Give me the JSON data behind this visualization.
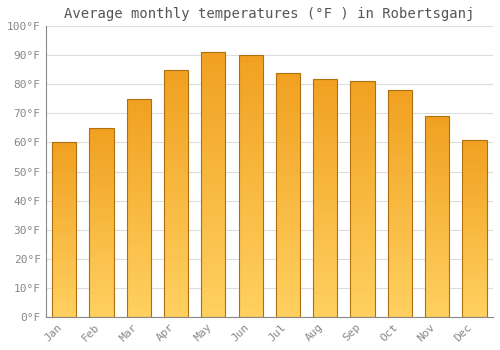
{
  "title": "Average monthly temperatures (°F ) in Robertsganj",
  "months": [
    "Jan",
    "Feb",
    "Mar",
    "Apr",
    "May",
    "Jun",
    "Jul",
    "Aug",
    "Sep",
    "Oct",
    "Nov",
    "Dec"
  ],
  "values": [
    60,
    65,
    75,
    85,
    91,
    90,
    84,
    82,
    81,
    78,
    69,
    61
  ],
  "bar_color_bottom": "#FFD060",
  "bar_color_top": "#F0A020",
  "bar_edge_color": "#B07010",
  "ylim": [
    0,
    100
  ],
  "yticks": [
    0,
    10,
    20,
    30,
    40,
    50,
    60,
    70,
    80,
    90,
    100
  ],
  "ytick_labels": [
    "0°F",
    "10°F",
    "20°F",
    "30°F",
    "40°F",
    "50°F",
    "60°F",
    "70°F",
    "80°F",
    "90°F",
    "100°F"
  ],
  "background_color": "#ffffff",
  "grid_color": "#dddddd",
  "title_fontsize": 10,
  "tick_fontsize": 8,
  "tick_color": "#888888",
  "title_color": "#555555",
  "bar_width": 0.65
}
